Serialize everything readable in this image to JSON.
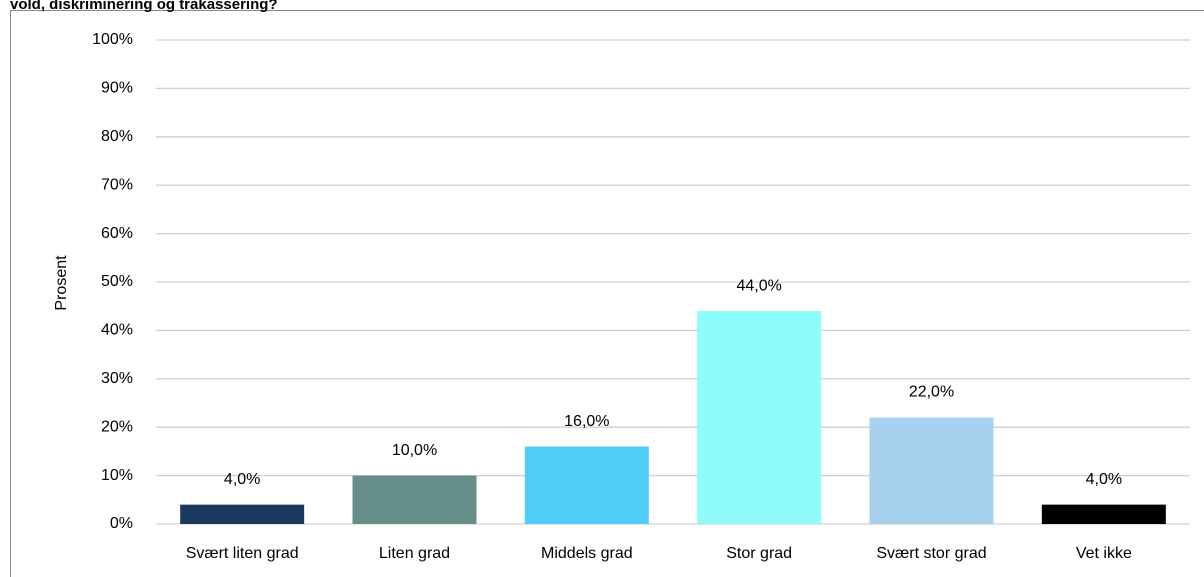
{
  "chart_data": {
    "type": "bar",
    "title": "vold, diskriminering og trakassering?",
    "y_label": "Prosent",
    "categories": [
      "Svært liten grad",
      "Liten grad",
      "Middels grad",
      "Stor grad",
      "Svært stor grad",
      "Vet ikke"
    ],
    "values": [
      4.0,
      10.0,
      16.0,
      44.0,
      22.0,
      4.0
    ],
    "value_labels": [
      "4,0%",
      "10,0%",
      "16,0%",
      "44,0%",
      "22,0%",
      "4,0%"
    ],
    "colors": [
      "#1a3a5e",
      "#668e8a",
      "#4fccf8",
      "#8ffbfa",
      "#a7d1ee",
      "#000000"
    ],
    "ylim": [
      0,
      100
    ],
    "yticks": [
      {
        "value": 0,
        "label": "0%"
      },
      {
        "value": 10,
        "label": "10%"
      },
      {
        "value": 20,
        "label": "20%"
      },
      {
        "value": 30,
        "label": "30%"
      },
      {
        "value": 40,
        "label": "40%"
      },
      {
        "value": 50,
        "label": "50%"
      },
      {
        "value": 60,
        "label": "60%"
      },
      {
        "value": 70,
        "label": "70%"
      },
      {
        "value": 80,
        "label": "80%"
      },
      {
        "value": 90,
        "label": "90%"
      },
      {
        "value": 100,
        "label": "100%"
      }
    ],
    "grid": true
  }
}
